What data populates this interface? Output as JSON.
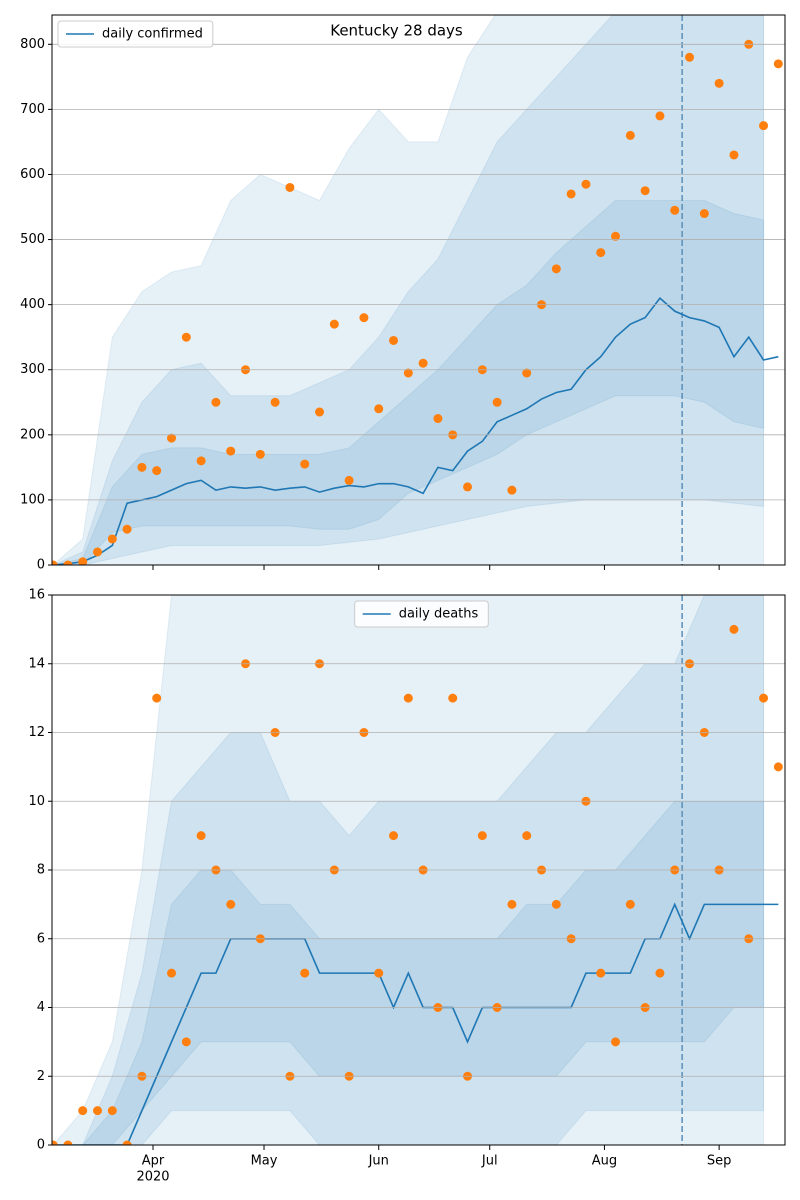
{
  "chart_data": [
    {
      "type": "line",
      "title": "Kentucky 28 days",
      "legend": "upper left",
      "grid": true,
      "vline": 235,
      "xlim": [
        64.7,
        262.8
      ],
      "ylim": [
        0,
        845
      ],
      "yticks": [
        0,
        100,
        200,
        300,
        400,
        500,
        600,
        700,
        800
      ],
      "xticks": [
        92,
        122,
        153,
        183,
        214,
        245
      ],
      "x": [
        65,
        69,
        73,
        77,
        81,
        85,
        89,
        93,
        97,
        101,
        105,
        109,
        113,
        117,
        121,
        125,
        129,
        133,
        137,
        141,
        145,
        149,
        153,
        157,
        161,
        165,
        169,
        173,
        177,
        181,
        185,
        189,
        193,
        197,
        201,
        205,
        209,
        213,
        217,
        221,
        225,
        229,
        233,
        237,
        241,
        245,
        249,
        253,
        257,
        261
      ],
      "series": [
        {
          "name": "daily confirmed",
          "color": "#1f77b4",
          "values": [
            0,
            2,
            5,
            15,
            30,
            95,
            100,
            105,
            115,
            125,
            130,
            115,
            120,
            118,
            120,
            115,
            118,
            120,
            112,
            118,
            122,
            120,
            125,
            125,
            120,
            110,
            150,
            145,
            175,
            190,
            220,
            230,
            240,
            255,
            265,
            270,
            300,
            320,
            350,
            370,
            380,
            410,
            390,
            380,
            375,
            365,
            320,
            350,
            315,
            320
          ]
        }
      ],
      "points": {
        "color": "#ff7f0e",
        "values": [
          0,
          0,
          5,
          20,
          40,
          55,
          150,
          145,
          195,
          350,
          160,
          250,
          175,
          300,
          170,
          250,
          580,
          155,
          235,
          370,
          130,
          380,
          240,
          345,
          295,
          310,
          225,
          200,
          120,
          300,
          250,
          115,
          295,
          400,
          455,
          570,
          585,
          480,
          505,
          660,
          575,
          690,
          545,
          780,
          540,
          740,
          630,
          800,
          675,
          770
        ]
      },
      "bands": {
        "color": "#1f77b4",
        "x": [
          65,
          73,
          81,
          89,
          97,
          105,
          113,
          121,
          129,
          137,
          145,
          153,
          161,
          169,
          177,
          185,
          193,
          201,
          209,
          217,
          225,
          233,
          241,
          249,
          257
        ],
        "ranges": [
          {
            "lower": [
              0,
              0,
              0,
              0,
              0,
              0,
              0,
              0,
              0,
              0,
              0,
              0,
              0,
              0,
              0,
              0,
              0,
              0,
              0,
              0,
              0,
              0,
              0,
              0,
              0
            ],
            "upper": [
              0,
              40,
              350,
              420,
              450,
              460,
              560,
              600,
              580,
              560,
              640,
              700,
              650,
              650,
              780,
              850,
              850,
              850,
              850,
              850,
              850,
              850,
              850,
              850,
              850
            ]
          },
          {
            "lower": [
              0,
              0,
              10,
              20,
              30,
              30,
              30,
              30,
              30,
              30,
              35,
              40,
              50,
              60,
              70,
              80,
              90,
              95,
              100,
              100,
              100,
              100,
              100,
              95,
              90
            ],
            "upper": [
              0,
              20,
              160,
              250,
              300,
              310,
              260,
              260,
              260,
              280,
              300,
              350,
              420,
              470,
              560,
              650,
              700,
              750,
              800,
              850,
              850,
              850,
              850,
              850,
              850
            ]
          },
          {
            "lower": [
              0,
              0,
              50,
              60,
              60,
              60,
              60,
              60,
              60,
              55,
              55,
              70,
              110,
              130,
              150,
              170,
              200,
              220,
              240,
              260,
              260,
              260,
              250,
              220,
              210
            ],
            "upper": [
              0,
              10,
              120,
              170,
              180,
              180,
              170,
              170,
              170,
              170,
              180,
              220,
              260,
              300,
              350,
              400,
              430,
              480,
              520,
              560,
              560,
              560,
              560,
              540,
              530
            ]
          }
        ]
      }
    },
    {
      "type": "line",
      "legend": "upper center",
      "grid": true,
      "vline": 235,
      "xlim": [
        64.7,
        262.8
      ],
      "ylim": [
        0,
        16
      ],
      "yticks": [
        0,
        2,
        4,
        6,
        8,
        10,
        12,
        14,
        16
      ],
      "xticks": [
        {
          "value": 92,
          "label": "Apr"
        },
        {
          "value": 122,
          "label": "May"
        },
        {
          "value": 153,
          "label": "Jun"
        },
        {
          "value": 183,
          "label": "Jul"
        },
        {
          "value": 214,
          "label": "Aug"
        },
        {
          "value": 245,
          "label": "Sep"
        }
      ],
      "year_label": "2020",
      "x": [
        65,
        69,
        73,
        77,
        81,
        85,
        89,
        93,
        97,
        101,
        105,
        109,
        113,
        117,
        121,
        125,
        129,
        133,
        137,
        141,
        145,
        149,
        153,
        157,
        161,
        165,
        169,
        173,
        177,
        181,
        185,
        189,
        193,
        197,
        201,
        205,
        209,
        213,
        217,
        221,
        225,
        229,
        233,
        237,
        241,
        245,
        249,
        253,
        257,
        261
      ],
      "series": [
        {
          "name": "daily deaths",
          "color": "#1f77b4",
          "values": [
            0,
            0,
            0,
            0,
            0,
            0,
            1,
            2,
            3,
            4,
            5,
            5,
            6,
            6,
            6,
            6,
            6,
            6,
            5,
            5,
            5,
            5,
            5,
            4,
            5,
            4,
            4,
            4,
            3,
            4,
            4,
            4,
            4,
            4,
            4,
            4,
            5,
            5,
            5,
            5,
            6,
            6,
            7,
            6,
            7,
            7,
            7,
            7,
            7,
            7
          ]
        }
      ],
      "points": {
        "color": "#ff7f0e",
        "values": [
          0,
          0,
          1,
          1,
          1,
          0,
          2,
          13,
          5,
          3,
          9,
          8,
          7,
          14,
          6,
          12,
          2,
          5,
          14,
          8,
          2,
          12,
          5,
          9,
          13,
          8,
          4,
          13,
          2,
          9,
          4,
          7,
          9,
          8,
          7,
          6,
          10,
          5,
          3,
          7,
          4,
          5,
          8,
          14,
          12,
          8,
          15,
          6,
          13,
          11
        ]
      },
      "bands": {
        "color": "#1f77b4",
        "x": [
          65,
          73,
          81,
          89,
          97,
          105,
          113,
          121,
          129,
          137,
          145,
          153,
          161,
          169,
          177,
          185,
          193,
          201,
          209,
          217,
          225,
          233,
          241,
          249,
          257
        ],
        "ranges": [
          {
            "lower": [
              0,
              0,
              0,
              0,
              0,
              0,
              0,
              0,
              0,
              0,
              0,
              0,
              0,
              0,
              0,
              0,
              0,
              0,
              0,
              0,
              0,
              0,
              0,
              0,
              0
            ],
            "upper": [
              0,
              1,
              3,
              8,
              16,
              16,
              17,
              17,
              17,
              17,
              17,
              17,
              17,
              17,
              17,
              17,
              17,
              17,
              17,
              17,
              17,
              17,
              17,
              17,
              17
            ]
          },
          {
            "lower": [
              0,
              0,
              0,
              0,
              1,
              1,
              1,
              1,
              1,
              0,
              0,
              0,
              0,
              0,
              0,
              0,
              0,
              0,
              1,
              1,
              1,
              1,
              1,
              1,
              1
            ],
            "upper": [
              0,
              0,
              2,
              5,
              10,
              11,
              12,
              12,
              10,
              10,
              9,
              10,
              10,
              10,
              10,
              10,
              11,
              12,
              12,
              13,
              14,
              14,
              16,
              16,
              16
            ]
          },
          {
            "lower": [
              0,
              0,
              0,
              1,
              2,
              3,
              3,
              3,
              3,
              2,
              2,
              2,
              2,
              2,
              2,
              2,
              2,
              2,
              3,
              3,
              3,
              3,
              3,
              4,
              4
            ],
            "upper": [
              0,
              0,
              1,
              3,
              7,
              8,
              8,
              7,
              7,
              6,
              6,
              6,
              6,
              6,
              6,
              6,
              7,
              7,
              8,
              8,
              9,
              10,
              10,
              10,
              10
            ]
          }
        ]
      }
    }
  ]
}
